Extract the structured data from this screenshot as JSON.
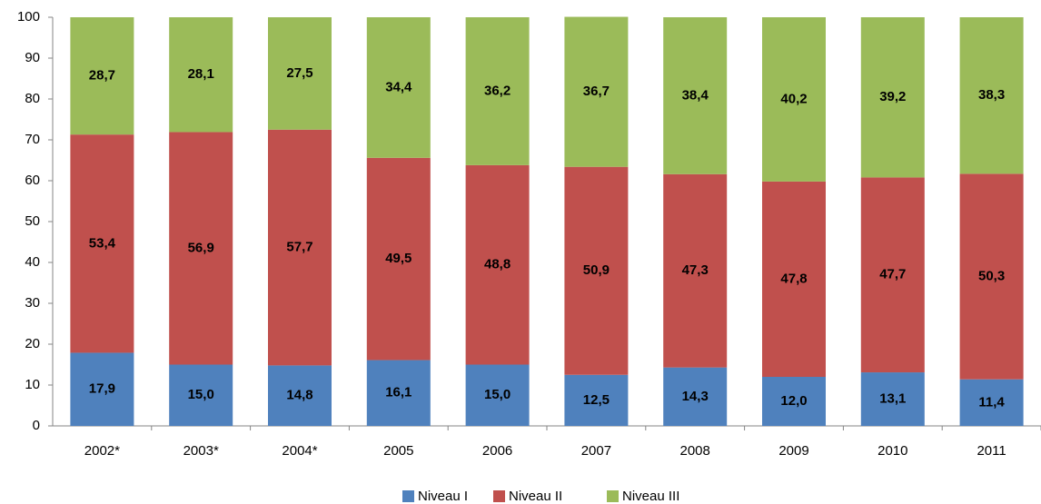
{
  "chart_data": {
    "type": "stacked_bar",
    "categories": [
      "2002*",
      "2003*",
      "2004*",
      "2005",
      "2006",
      "2007",
      "2008",
      "2009",
      "2010",
      "2011"
    ],
    "series": [
      {
        "name": "Niveau I",
        "color": "#4f81bd",
        "values": [
          17.9,
          15.0,
          14.8,
          16.1,
          15.0,
          12.5,
          14.3,
          12.0,
          13.1,
          11.4
        ],
        "value_labels": [
          "17,9",
          "15,0",
          "14,8",
          "16,1",
          "15,0",
          "12,5",
          "14,3",
          "12,0",
          "13,1",
          "11,4"
        ]
      },
      {
        "name": "Niveau II",
        "color": "#c0504d",
        "values": [
          53.4,
          56.9,
          57.7,
          49.5,
          48.8,
          50.9,
          47.3,
          47.8,
          47.7,
          50.3
        ],
        "value_labels": [
          "53,4",
          "56,9",
          "57,7",
          "49,5",
          "48,8",
          "50,9",
          "47,3",
          "47,8",
          "47,7",
          "50,3"
        ]
      },
      {
        "name": "Niveau III",
        "color": "#9bbb59",
        "values": [
          28.7,
          28.1,
          27.5,
          34.4,
          36.2,
          36.7,
          38.4,
          40.2,
          39.2,
          38.3
        ],
        "value_labels": [
          "28,7",
          "28,1",
          "27,5",
          "34,4",
          "36,2",
          "36,7",
          "38,4",
          "40,2",
          "39,2",
          "38,3"
        ]
      }
    ],
    "ylim": [
      0,
      100
    ],
    "yticks": [
      0,
      10,
      20,
      30,
      40,
      50,
      60,
      70,
      80,
      90,
      100
    ],
    "grid": false,
    "legend": "bottom"
  }
}
